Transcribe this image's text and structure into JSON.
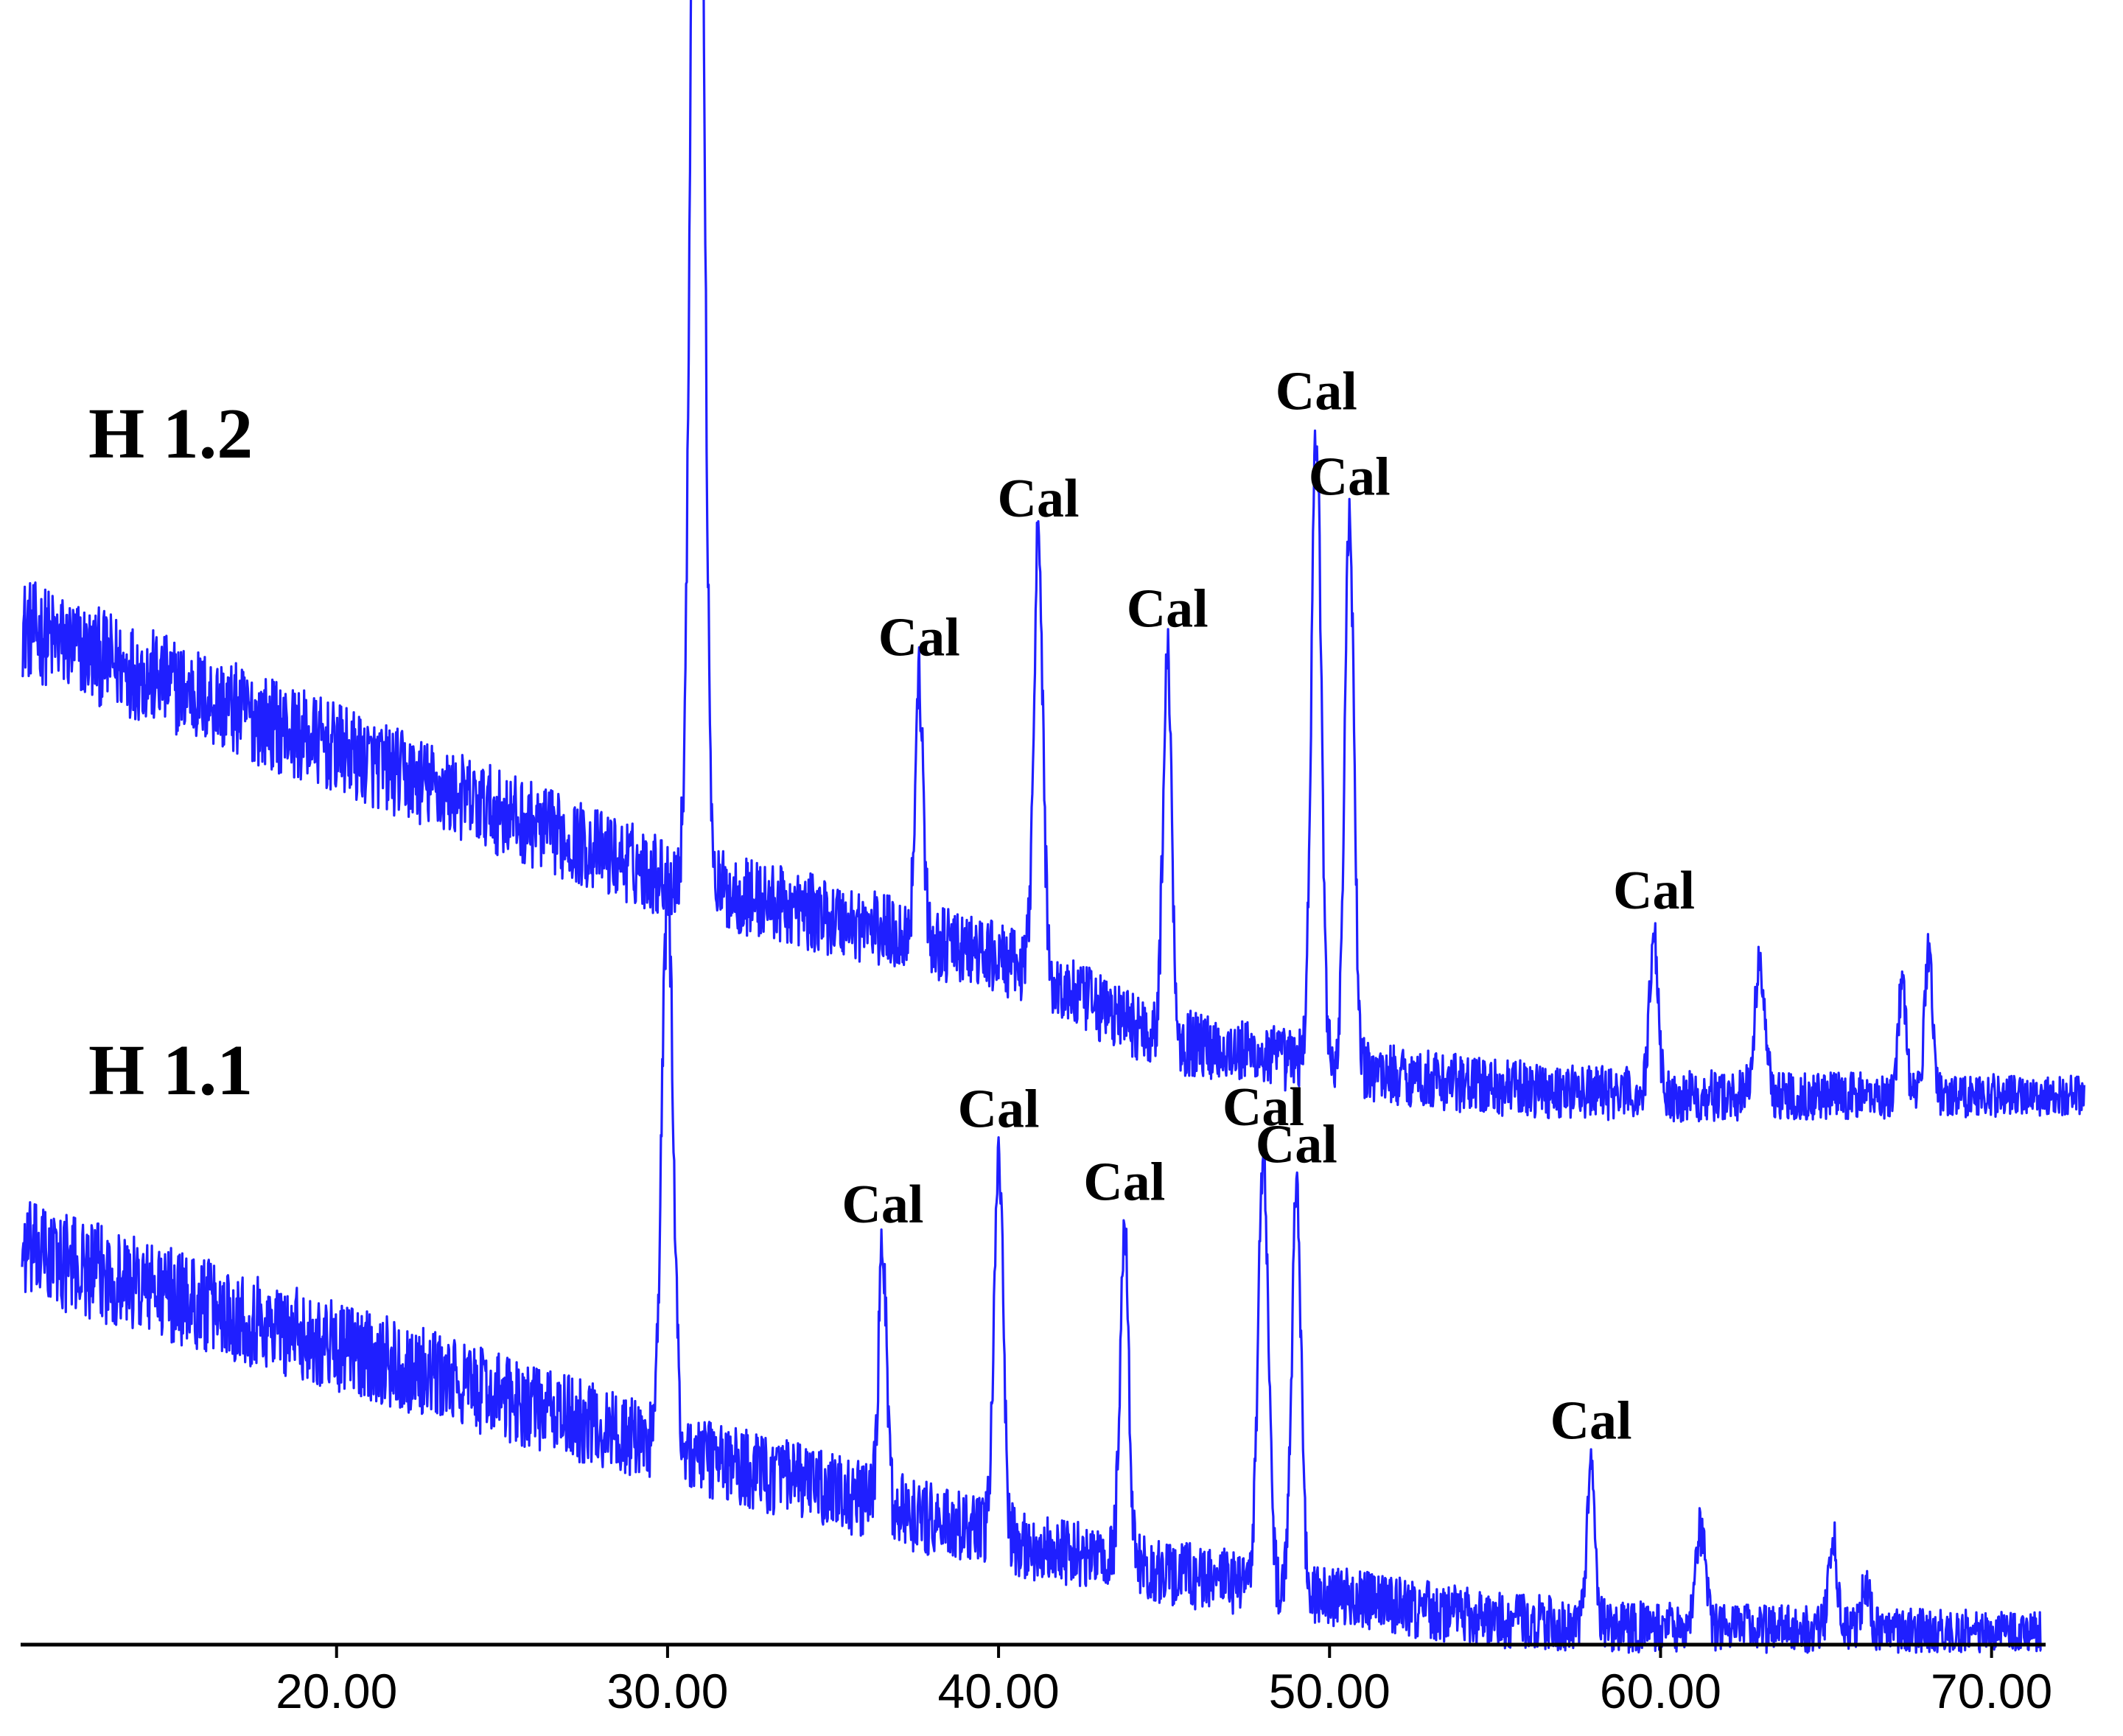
{
  "chart_data": {
    "type": "line",
    "title": "",
    "xlabel": "",
    "ylabel": "",
    "xlim": [
      10.5,
      71.5
    ],
    "ylim": [
      0,
      100
    ],
    "grid": false,
    "legend": "none",
    "line_color": "#1f1fff",
    "axis_color": "#000000",
    "x_ticks": [
      {
        "value": 20,
        "label": "20.00"
      },
      {
        "value": 30,
        "label": "30.00"
      },
      {
        "value": 40,
        "label": "40.00"
      },
      {
        "value": 50,
        "label": "50.00"
      },
      {
        "value": 60,
        "label": "60.00"
      },
      {
        "value": 70,
        "label": "70.00"
      }
    ],
    "series": [
      {
        "name": "H 1.2",
        "x_end": 72.8,
        "baseline": [
          [
            10.5,
            63
          ],
          [
            30,
            47.5
          ],
          [
            40,
            42.5
          ],
          [
            45,
            37.5
          ],
          [
            50,
            35.8
          ],
          [
            55,
            34.5
          ],
          [
            60,
            34
          ],
          [
            72.8,
            34
          ]
        ],
        "noise": 2.5,
        "peaks": [
          {
            "x": 30.9,
            "height": 98,
            "width": 0.18,
            "label": "Cal"
          },
          {
            "x": 37.6,
            "height": 16,
            "width": 0.12,
            "label": "Cal"
          },
          {
            "x": 41.2,
            "height": 27,
            "width": 0.14,
            "label": "Cal"
          },
          {
            "x": 45.1,
            "height": 24,
            "width": 0.13,
            "label": "Cal"
          },
          {
            "x": 49.6,
            "height": 39,
            "width": 0.15,
            "label": "Cal"
          },
          {
            "x": 50.6,
            "height": 34,
            "width": 0.14,
            "label": "Cal"
          },
          {
            "x": 59.8,
            "height": 10,
            "width": 0.13,
            "label": "Cal"
          },
          {
            "x": 63.0,
            "height": 8,
            "width": 0.16
          },
          {
            "x": 67.3,
            "height": 7,
            "width": 0.12
          },
          {
            "x": 68.1,
            "height": 9,
            "width": 0.12
          }
        ]
      },
      {
        "name": "H 1.1",
        "x_end": 71.5,
        "baseline": [
          [
            10.5,
            24.5
          ],
          [
            29.5,
            12.5
          ],
          [
            35,
            9.5
          ],
          [
            40,
            6.5
          ],
          [
            45,
            4.5
          ],
          [
            50,
            3
          ],
          [
            55,
            1.5
          ],
          [
            60,
            1
          ],
          [
            71.5,
            0.8
          ]
        ],
        "noise": 2.5,
        "peaks": [
          {
            "x": 30.0,
            "height": 34,
            "width": 0.17
          },
          {
            "x": 36.5,
            "height": 16,
            "width": 0.12,
            "label": "Cal"
          },
          {
            "x": 40.0,
            "height": 24,
            "width": 0.14,
            "label": "Cal"
          },
          {
            "x": 43.8,
            "height": 21,
            "width": 0.13,
            "label": "Cal"
          },
          {
            "x": 48.0,
            "height": 27,
            "width": 0.15,
            "label": "Cal"
          },
          {
            "x": 49.0,
            "height": 25,
            "width": 0.14,
            "label": "Cal"
          },
          {
            "x": 57.9,
            "height": 10,
            "width": 0.12,
            "label": "Cal"
          },
          {
            "x": 61.2,
            "height": 6,
            "width": 0.16
          },
          {
            "x": 65.2,
            "height": 6,
            "width": 0.12
          },
          {
            "x": 66.2,
            "height": 3,
            "width": 0.12
          }
        ]
      }
    ]
  }
}
